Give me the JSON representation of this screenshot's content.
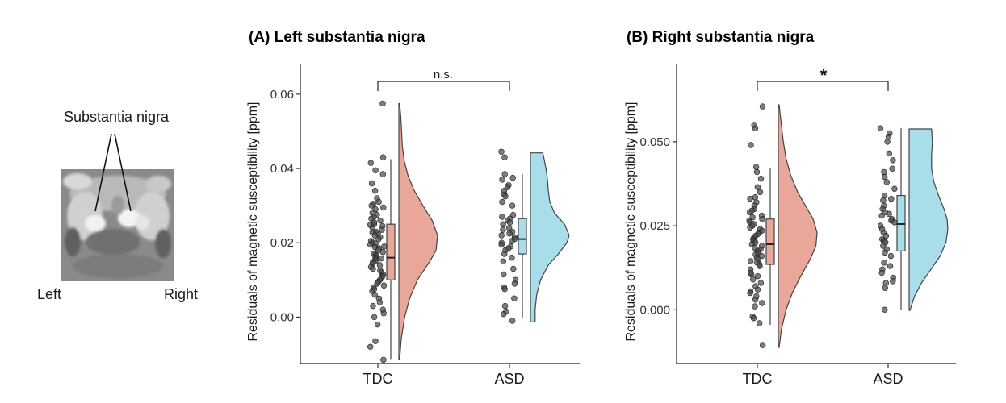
{
  "brain_panel": {
    "structure_label": "Substantia nigra",
    "left_label": "Left",
    "right_label": "Right"
  },
  "colors": {
    "TDC": "#E9A799",
    "ASD": "#A9DDEA",
    "points": "#4a4a4a",
    "outline": "#444444"
  },
  "chart_data": [
    {
      "type": "raincloud",
      "panel": "A",
      "title": "(A) Left substantia nigra",
      "xlabel": "",
      "ylabel": "Residuals of magnetic susceptibility [ppm]",
      "categories": [
        "TDC",
        "ASD"
      ],
      "ylim": [
        -0.0125,
        0.068
      ],
      "yticks": [
        0.0,
        0.02,
        0.04,
        0.06
      ],
      "ytick_labels": [
        "0.00",
        "0.02",
        "0.04",
        "0.06"
      ],
      "grid": false,
      "comparison": {
        "label": "n.s."
      },
      "groups": [
        {
          "name": "TDC",
          "box": {
            "min": -0.0115,
            "q1": 0.01,
            "median": 0.016,
            "q3": 0.025,
            "max": 0.0425
          },
          "density": {
            "y": [
              -0.0115,
              -0.006,
              0.0,
              0.005,
              0.01,
              0.015,
              0.018,
              0.022,
              0.026,
              0.03,
              0.034,
              0.038,
              0.042,
              0.046,
              0.05,
              0.054,
              0.0575
            ],
            "d": [
              0.02,
              0.06,
              0.15,
              0.28,
              0.48,
              0.8,
              0.96,
              1.0,
              0.86,
              0.62,
              0.4,
              0.24,
              0.14,
              0.09,
              0.07,
              0.05,
              0.02
            ]
          },
          "points": [
            0.0575,
            0.043,
            0.0415,
            0.0395,
            0.0385,
            0.036,
            0.034,
            0.032,
            0.031,
            0.0305,
            0.03,
            0.0295,
            0.029,
            0.028,
            0.0275,
            0.027,
            0.0265,
            0.026,
            0.0255,
            0.025,
            0.0248,
            0.0245,
            0.024,
            0.0235,
            0.023,
            0.0228,
            0.0225,
            0.022,
            0.0215,
            0.021,
            0.0205,
            0.02,
            0.0198,
            0.0195,
            0.019,
            0.0188,
            0.0185,
            0.018,
            0.0175,
            0.017,
            0.0168,
            0.0165,
            0.016,
            0.0158,
            0.0155,
            0.015,
            0.0148,
            0.0145,
            0.014,
            0.0135,
            0.013,
            0.0125,
            0.012,
            0.0115,
            0.011,
            0.0105,
            0.01,
            0.0095,
            0.009,
            0.0085,
            0.008,
            0.0075,
            0.007,
            0.006,
            0.005,
            0.004,
            0.003,
            0.002,
            0.001,
            0.0,
            -0.002,
            -0.0065,
            -0.008,
            -0.0115
          ]
        },
        {
          "name": "ASD",
          "box": {
            "min": -0.0003,
            "q1": 0.017,
            "median": 0.021,
            "q3": 0.0265,
            "max": 0.0385
          },
          "density": {
            "y": [
              -0.0013,
              0.002,
              0.006,
              0.01,
              0.014,
              0.017,
              0.02,
              0.022,
              0.025,
              0.028,
              0.031,
              0.034,
              0.037,
              0.04,
              0.0442
            ],
            "d": [
              0.12,
              0.12,
              0.16,
              0.26,
              0.46,
              0.72,
              0.94,
              1.0,
              0.88,
              0.62,
              0.5,
              0.46,
              0.44,
              0.4,
              0.32
            ]
          },
          "points": [
            0.0445,
            0.043,
            0.0385,
            0.0375,
            0.037,
            0.0355,
            0.035,
            0.034,
            0.033,
            0.0325,
            0.031,
            0.03,
            0.0275,
            0.027,
            0.0265,
            0.026,
            0.0255,
            0.025,
            0.024,
            0.0235,
            0.023,
            0.0225,
            0.022,
            0.0215,
            0.021,
            0.0205,
            0.02,
            0.0195,
            0.019,
            0.0185,
            0.018,
            0.017,
            0.016,
            0.015,
            0.013,
            0.0115,
            0.01,
            0.009,
            0.008,
            0.0075,
            0.005,
            0.003,
            0.0015,
            0.0008,
            -0.001
          ]
        }
      ]
    },
    {
      "type": "raincloud",
      "panel": "B",
      "title": "(B) Right substantia nigra",
      "xlabel": "",
      "ylabel": "Residuals of magnetic susceptibility [ppm]",
      "categories": [
        "TDC",
        "ASD"
      ],
      "ylim": [
        -0.016,
        0.073
      ],
      "yticks": [
        0.0,
        0.025,
        0.05
      ],
      "ytick_labels": [
        "0.000",
        "0.025",
        "0.050"
      ],
      "grid": false,
      "comparison": {
        "label": "*"
      },
      "groups": [
        {
          "name": "TDC",
          "box": {
            "min": -0.0045,
            "q1": 0.0135,
            "median": 0.0195,
            "q3": 0.027,
            "max": 0.042
          },
          "density": {
            "y": [
              -0.0112,
              -0.006,
              0.0,
              0.005,
              0.01,
              0.015,
              0.019,
              0.023,
              0.027,
              0.031,
              0.035,
              0.04,
              0.045,
              0.05,
              0.055,
              0.061
            ],
            "d": [
              0.02,
              0.08,
              0.2,
              0.36,
              0.58,
              0.82,
              0.97,
              1.0,
              0.9,
              0.7,
              0.5,
              0.32,
              0.2,
              0.13,
              0.08,
              0.02
            ]
          },
          "points": [
            0.0605,
            0.055,
            0.054,
            0.049,
            0.0425,
            0.041,
            0.039,
            0.0365,
            0.035,
            0.0335,
            0.033,
            0.032,
            0.031,
            0.03,
            0.0295,
            0.029,
            0.028,
            0.0275,
            0.027,
            0.0265,
            0.026,
            0.0255,
            0.025,
            0.0245,
            0.024,
            0.0235,
            0.023,
            0.0225,
            0.022,
            0.0215,
            0.021,
            0.0205,
            0.02,
            0.0195,
            0.019,
            0.0185,
            0.018,
            0.0175,
            0.017,
            0.0165,
            0.016,
            0.0155,
            0.015,
            0.0145,
            0.014,
            0.0135,
            0.013,
            0.012,
            0.011,
            0.0105,
            0.01,
            0.009,
            0.008,
            0.007,
            0.006,
            0.0055,
            0.005,
            0.004,
            0.003,
            0.002,
            0.001,
            -0.002,
            -0.0025,
            -0.004,
            -0.0105
          ]
        },
        {
          "name": "ASD",
          "box": {
            "min": 0.0,
            "q1": 0.0175,
            "median": 0.0255,
            "q3": 0.034,
            "max": 0.054
          },
          "density": {
            "y": [
              -0.0002,
              0.004,
              0.008,
              0.012,
              0.016,
              0.02,
              0.024,
              0.027,
              0.03,
              0.034,
              0.038,
              0.042,
              0.046,
              0.05,
              0.0538
            ],
            "d": [
              0.02,
              0.14,
              0.32,
              0.56,
              0.8,
              0.95,
              1.0,
              0.98,
              0.9,
              0.76,
              0.64,
              0.58,
              0.58,
              0.6,
              0.58
            ]
          },
          "points": [
            0.054,
            0.0525,
            0.0515,
            0.05,
            0.0465,
            0.0445,
            0.042,
            0.041,
            0.0395,
            0.038,
            0.036,
            0.034,
            0.033,
            0.0325,
            0.031,
            0.03,
            0.029,
            0.0285,
            0.028,
            0.027,
            0.0265,
            0.026,
            0.025,
            0.024,
            0.023,
            0.022,
            0.021,
            0.0205,
            0.02,
            0.019,
            0.018,
            0.017,
            0.016,
            0.014,
            0.013,
            0.012,
            0.011,
            0.0095,
            0.0085,
            0.008,
            0.0065,
            0.0
          ]
        }
      ]
    }
  ]
}
